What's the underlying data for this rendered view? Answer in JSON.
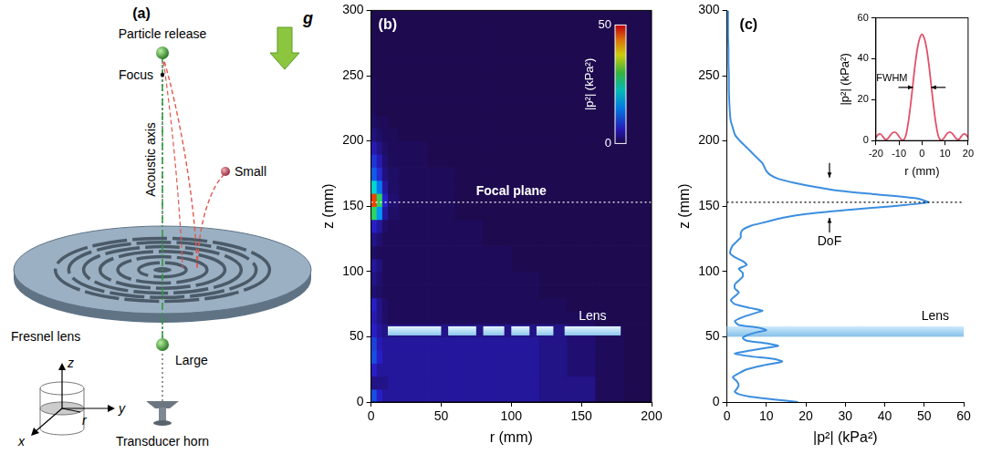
{
  "diagram": {
    "panel_label": "(a)",
    "labels": {
      "particle_release": "Particle release",
      "focus": "Focus",
      "gravity": "g",
      "acoustic_axis": "Acoustic axis",
      "small": "Small",
      "large": "Large",
      "lens": "Fresnel lens",
      "horn": "Transducer horn"
    },
    "axes_glyph": [
      "z",
      "y",
      "x",
      "r"
    ]
  },
  "chart_data": [
    {
      "panel_label": "(b)",
      "type": "heatmap",
      "xlabel": "r (mm)",
      "ylabel": "z (mm)",
      "xlim": [
        0,
        200
      ],
      "xticks": [
        0,
        50,
        100,
        150,
        200
      ],
      "ylim": [
        0,
        300
      ],
      "yticks": [
        0,
        50,
        100,
        150,
        200,
        250,
        300
      ],
      "grid": false,
      "r_edges": [
        0,
        4,
        8,
        12,
        20,
        40,
        60,
        80,
        100,
        120,
        140,
        160,
        180,
        200
      ],
      "z_edges": [
        0,
        10,
        20,
        30,
        40,
        50,
        60,
        70,
        80,
        90,
        100,
        110,
        120,
        130,
        140,
        150,
        160,
        170,
        180,
        190,
        200,
        210,
        220,
        230,
        240,
        250,
        260,
        270,
        280,
        290,
        300
      ],
      "cells": [
        [
          10,
          6,
          4,
          4,
          4,
          4,
          4,
          4,
          4,
          3,
          3,
          1,
          0.5
        ],
        [
          3,
          3,
          3,
          4,
          4,
          4,
          4,
          4,
          4,
          3,
          3,
          1,
          0.5
        ],
        [
          6,
          4,
          4,
          4,
          4,
          4,
          4,
          4,
          4,
          3,
          2,
          1,
          0.5
        ],
        [
          10,
          6,
          4,
          4,
          4,
          4,
          4,
          4,
          4,
          3,
          2,
          1,
          0.5
        ],
        [
          9,
          5,
          4,
          4,
          4,
          4,
          4,
          4,
          4,
          3,
          2,
          1,
          0.5
        ],
        [
          6,
          4,
          3,
          3,
          3,
          3,
          3,
          3,
          3,
          3,
          2,
          1,
          0.5
        ],
        [
          5,
          3,
          1.5,
          1,
          1,
          1,
          1,
          1,
          1,
          1,
          1,
          0.5,
          0.5
        ],
        [
          6,
          3,
          1.5,
          1,
          1,
          1,
          1,
          1,
          1,
          1,
          0.5,
          0.5,
          0.5
        ],
        [
          2,
          1.5,
          1,
          1,
          1,
          1,
          1,
          1,
          1,
          0.5,
          0.5,
          0.5,
          0.5
        ],
        [
          3,
          2,
          1,
          1,
          1,
          1,
          1,
          1,
          1,
          0.5,
          0.5,
          0.5,
          0.5
        ],
        [
          4,
          2.5,
          1,
          1,
          1,
          1,
          1,
          1,
          0.5,
          0.5,
          0.5,
          0.5,
          0.5
        ],
        [
          1.5,
          1,
          1,
          1,
          1,
          1,
          1,
          1,
          0.5,
          0.5,
          0.5,
          0.5,
          0.5
        ],
        [
          3,
          2,
          1,
          1,
          1,
          1,
          1,
          0.5,
          0.5,
          0.5,
          0.5,
          0.5,
          0.5
        ],
        [
          6,
          4,
          1.5,
          1,
          1,
          1,
          1,
          0.5,
          0.5,
          0.5,
          0.5,
          0.5,
          0.5
        ],
        [
          28,
          16,
          4,
          1.5,
          1,
          1,
          0.5,
          0.5,
          0.5,
          0.5,
          0.5,
          0.5,
          0.5
        ],
        [
          47,
          28,
          6,
          2,
          1,
          1,
          0.5,
          0.5,
          0.5,
          0.5,
          0.5,
          0.5,
          0.5
        ],
        [
          22,
          13,
          4,
          1.5,
          1,
          1,
          0.5,
          0.5,
          0.5,
          0.5,
          0.5,
          0.5,
          0.5
        ],
        [
          11,
          7,
          2.5,
          1.5,
          1,
          1,
          0.5,
          0.5,
          0.5,
          0.5,
          0.5,
          0.5,
          0.5
        ],
        [
          8,
          5,
          2,
          1,
          1,
          0.5,
          0.5,
          0.5,
          0.5,
          0.5,
          0.5,
          0.5,
          0.5
        ],
        [
          5,
          3,
          1.5,
          1,
          1,
          0.5,
          0.5,
          0.5,
          0.5,
          0.5,
          0.5,
          0.5,
          0.5
        ],
        [
          2.5,
          1.5,
          1,
          1,
          0.5,
          0.5,
          0.5,
          0.5,
          0.5,
          0.5,
          0.5,
          0.5,
          0.5
        ],
        [
          1.5,
          1,
          1,
          0.5,
          0.5,
          0.5,
          0.5,
          0.5,
          0.5,
          0.5,
          0.5,
          0.5,
          0.5
        ],
        [
          1,
          0.5,
          0.5,
          0.5,
          0.5,
          0.5,
          0.5,
          0.5,
          0.5,
          0.5,
          0.5,
          0.5,
          0.5
        ],
        [
          1,
          0.5,
          0.5,
          0.5,
          0.5,
          0.5,
          0.5,
          0.5,
          0.5,
          0.5,
          0.5,
          0.5,
          0.5
        ],
        [
          1,
          0.5,
          0.5,
          0.5,
          0.5,
          0.5,
          0.5,
          0.5,
          0.5,
          0.5,
          0.5,
          0.5,
          0.5
        ],
        [
          0.5,
          0.5,
          0.5,
          0.5,
          0.5,
          0.5,
          0.5,
          0.5,
          0.5,
          0.5,
          0.5,
          0.5,
          0.5
        ],
        [
          0.5,
          0.5,
          0.5,
          0.5,
          0.5,
          0.5,
          0.5,
          0.5,
          0.5,
          0.5,
          0.5,
          0.5,
          0.5
        ],
        [
          0.5,
          0.5,
          0.5,
          0.5,
          0.5,
          0.5,
          0.5,
          0.5,
          0.5,
          0.5,
          0.5,
          0.5,
          0.5
        ],
        [
          0.5,
          0.5,
          0.5,
          0.5,
          0.5,
          0.5,
          0.5,
          0.5,
          0.5,
          0.5,
          0.5,
          0.5,
          0.5
        ],
        [
          0.5,
          0.5,
          0.5,
          0.5,
          0.5,
          0.5,
          0.5,
          0.5,
          0.5,
          0.5,
          0.5,
          0.5,
          0.5
        ]
      ],
      "colorbar": {
        "label": "|p²| (kPa²)",
        "range": [
          0,
          50
        ],
        "ticks": [
          0,
          50
        ]
      },
      "focal_plane": {
        "label": "Focal plane",
        "z": 153,
        "line_style": "dotted"
      },
      "lens": {
        "label": "Lens",
        "z": [
          51,
          58
        ],
        "segments": [
          [
            12,
            50
          ],
          [
            55,
            75
          ],
          [
            80,
            95
          ],
          [
            100,
            113
          ],
          [
            118,
            130
          ],
          [
            138,
            178
          ]
        ]
      }
    },
    {
      "panel_label": "(c)",
      "type": "line",
      "xlabel": "|p²| (kPa²)",
      "ylabel": "z (mm)",
      "xlim": [
        0,
        60
      ],
      "xticks": [
        0,
        10,
        20,
        30,
        40,
        50,
        60
      ],
      "ylim": [
        0,
        300
      ],
      "yticks": [
        0,
        50,
        100,
        150,
        200,
        250,
        300
      ],
      "grid": false,
      "series": [
        {
          "color": "#3b8ee0",
          "z": [
            0,
            2,
            4,
            6,
            8,
            10,
            13,
            16,
            19,
            22,
            25,
            28,
            31,
            33,
            35,
            37,
            39,
            41,
            43,
            45,
            47,
            49,
            51,
            53,
            55,
            57,
            59,
            62,
            65,
            68,
            70,
            72,
            75,
            78,
            81,
            84,
            87,
            90,
            93,
            96,
            99,
            102,
            105,
            108,
            111,
            114,
            117,
            120,
            123,
            126,
            129,
            132,
            135,
            138,
            141,
            144,
            147,
            150,
            153,
            156,
            159,
            162,
            165,
            168,
            171,
            174,
            177,
            180,
            183,
            186,
            189,
            192,
            195,
            198,
            201,
            205,
            210,
            215,
            220,
            230,
            240,
            250,
            260,
            270,
            280,
            290,
            300
          ],
          "values": [
            18,
            12,
            6,
            3,
            2,
            2.5,
            3,
            2.5,
            1.5,
            3,
            5,
            9,
            14,
            12,
            6,
            2,
            5,
            9,
            13,
            10,
            5,
            4,
            5,
            7,
            10,
            8,
            3,
            2,
            4,
            7,
            9,
            6,
            2,
            1,
            2,
            3,
            2,
            2,
            3,
            4,
            4,
            3,
            5,
            4,
            2,
            0.8,
            1,
            1.5,
            2.5,
            3.5,
            3.5,
            4,
            6,
            10,
            14,
            20,
            30,
            42,
            51,
            48,
            38,
            28,
            22,
            17,
            13,
            11,
            10,
            9.5,
            9,
            8,
            7,
            6,
            5,
            4,
            3,
            2,
            1.5,
            1,
            0.8,
            0.6,
            0.5,
            0.5,
            0.4,
            0.4,
            0.3,
            0.3,
            0.3
          ]
        }
      ],
      "focal_plane": {
        "z": 153,
        "line_style": "dotted"
      },
      "lens": {
        "label": "Lens",
        "z": [
          50,
          58
        ]
      },
      "dof": {
        "label": "DoF",
        "z": [
          141,
          172
        ],
        "x": 26
      },
      "inset": {
        "type": "line",
        "xlabel": "r (mm)",
        "ylabel": "|p²| (kPa²)",
        "xlim": [
          -20,
          20
        ],
        "xticks": [
          -20,
          -10,
          0,
          10,
          20
        ],
        "ylim": [
          0,
          60
        ],
        "yticks": [
          0,
          20,
          40,
          60
        ],
        "grid": false,
        "series": [
          {
            "color": "#e2506a",
            "x": [
              -20,
              -19,
              -18,
              -17,
              -16,
              -15,
              -14,
              -13,
              -12,
              -11,
              -10,
              -9,
              -8,
              -7,
              -6,
              -5,
              -4,
              -3,
              -2,
              -1,
              0,
              1,
              2,
              3,
              4,
              5,
              6,
              7,
              8,
              9,
              10,
              11,
              12,
              13,
              14,
              15,
              16,
              17,
              18,
              19,
              20
            ],
            "values": [
              1.5,
              3,
              3.2,
              2,
              0.6,
              0.8,
              2.2,
              3.6,
              4.2,
              3.6,
              2,
              0.6,
              0.2,
              2.5,
              8.5,
              17,
              27,
              37,
              45,
              50,
              52,
              50,
              45,
              37,
              27,
              17,
              8.5,
              2.5,
              0.2,
              0.6,
              2,
              3.6,
              4.2,
              3.6,
              2.2,
              0.8,
              0.6,
              2,
              3.2,
              3,
              1.5
            ]
          }
        ],
        "fwhm": {
          "label": "FWHM",
          "value": 26,
          "r": [
            -3.9,
            3.9
          ]
        }
      }
    }
  ]
}
